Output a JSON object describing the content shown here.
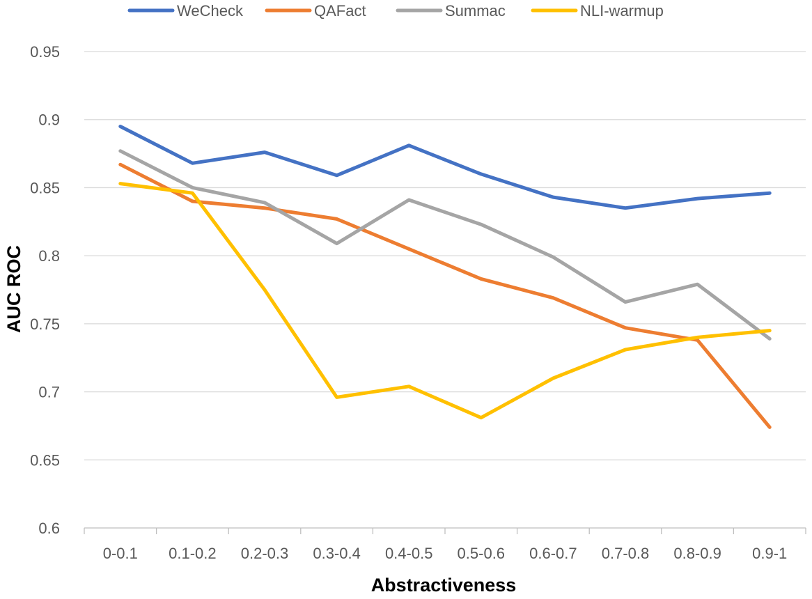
{
  "chart_data": {
    "type": "line",
    "title": "",
    "xlabel": "Abstractiveness",
    "ylabel": "AUC ROC",
    "categories": [
      "0-0.1",
      "0.1-0.2",
      "0.2-0.3",
      "0.3-0.4",
      "0.4-0.5",
      "0.5-0.6",
      "0.6-0.7",
      "0.7-0.8",
      "0.8-0.9",
      "0.9-1"
    ],
    "ylim": [
      0.6,
      0.95
    ],
    "yticks": [
      0.6,
      0.65,
      0.7,
      0.75,
      0.8,
      0.85,
      0.9,
      0.95
    ],
    "ytick_labels": [
      "0.6",
      "0.65",
      "0.7",
      "0.75",
      "0.8",
      "0.85",
      "0.9",
      "0.95"
    ],
    "grid": true,
    "legend_position": "top",
    "series": [
      {
        "name": "WeCheck",
        "color": "#4472C4",
        "values": [
          0.895,
          0.868,
          0.876,
          0.859,
          0.881,
          0.86,
          0.843,
          0.835,
          0.842,
          0.846
        ]
      },
      {
        "name": "QAFact",
        "color": "#ED7D31",
        "values": [
          0.867,
          0.84,
          0.835,
          0.827,
          0.805,
          0.783,
          0.769,
          0.747,
          0.738,
          0.674
        ]
      },
      {
        "name": "Summac",
        "color": "#A5A5A5",
        "values": [
          0.877,
          0.85,
          0.839,
          0.809,
          0.841,
          0.823,
          0.799,
          0.766,
          0.779,
          0.739
        ]
      },
      {
        "name": "NLI-warmup",
        "color": "#FFC000",
        "values": [
          0.853,
          0.846,
          0.775,
          0.696,
          0.704,
          0.681,
          0.71,
          0.731,
          0.74,
          0.745
        ]
      }
    ]
  }
}
